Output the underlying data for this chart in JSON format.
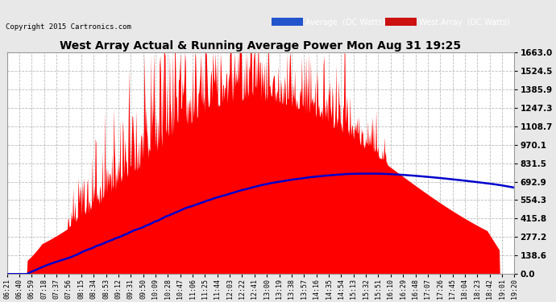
{
  "title": "West Array Actual & Running Average Power Mon Aug 31 19:25",
  "copyright": "Copyright 2015 Cartronics.com",
  "yticks": [
    0.0,
    138.6,
    277.2,
    415.8,
    554.3,
    692.9,
    831.5,
    970.1,
    1108.7,
    1247.3,
    1385.9,
    1524.5,
    1663.0
  ],
  "ymin": 0.0,
  "ymax": 1663.0,
  "fig_bg_color": "#e8e8e8",
  "plot_bg_color": "#ffffff",
  "grid_color": "#aaaaaa",
  "red_color": "#ff0000",
  "blue_color": "#0000cc",
  "legend_avg_bg": "#2255cc",
  "legend_west_bg": "#cc1111",
  "x_tick_labels": [
    "06:21",
    "06:40",
    "06:59",
    "07:18",
    "07:37",
    "07:56",
    "08:15",
    "08:34",
    "08:53",
    "09:12",
    "09:31",
    "09:50",
    "10:09",
    "10:28",
    "10:47",
    "11:06",
    "11:25",
    "11:44",
    "12:03",
    "12:22",
    "12:41",
    "13:00",
    "13:19",
    "13:38",
    "13:57",
    "14:16",
    "14:35",
    "14:54",
    "15:13",
    "15:32",
    "15:51",
    "16:10",
    "16:29",
    "16:48",
    "17:07",
    "17:26",
    "17:45",
    "18:04",
    "18:23",
    "18:42",
    "19:01",
    "19:20"
  ],
  "n_points": 800
}
